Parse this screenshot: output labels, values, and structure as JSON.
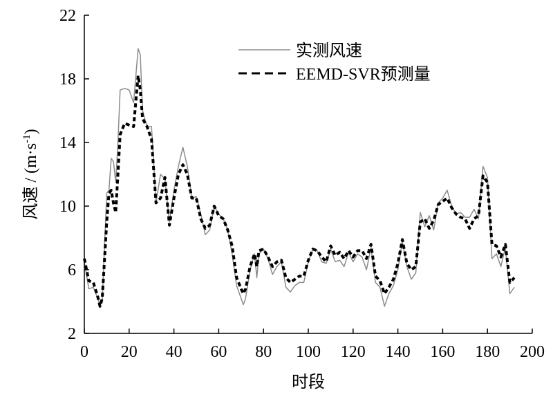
{
  "chart_data": {
    "type": "line",
    "title": "",
    "xlabel": "时段",
    "ylabel": "风速 / (m·s",
    "ylabel_sup": "-1",
    "ylabel_close": ")",
    "xlim": [
      0,
      200
    ],
    "ylim": [
      2,
      22
    ],
    "xticks": [
      0,
      20,
      40,
      60,
      80,
      100,
      120,
      140,
      160,
      180,
      200
    ],
    "yticks": [
      2,
      6,
      10,
      14,
      18,
      22
    ],
    "grid": false,
    "legend_position": "top-right",
    "x": [
      0,
      2,
      4,
      6,
      7,
      8,
      10,
      11,
      12,
      13,
      14,
      15,
      16,
      18,
      20,
      22,
      24,
      25,
      26,
      28,
      30,
      32,
      34,
      36,
      38,
      40,
      42,
      44,
      46,
      48,
      50,
      52,
      54,
      56,
      58,
      60,
      62,
      64,
      66,
      68,
      70,
      71,
      72,
      74,
      76,
      77,
      78,
      80,
      82,
      84,
      86,
      88,
      90,
      92,
      94,
      96,
      98,
      100,
      102,
      104,
      106,
      108,
      110,
      112,
      114,
      116,
      118,
      120,
      122,
      124,
      126,
      128,
      130,
      132,
      134,
      136,
      138,
      140,
      142,
      144,
      146,
      148,
      150,
      152,
      154,
      156,
      158,
      160,
      162,
      164,
      166,
      168,
      170,
      172,
      174,
      176,
      178,
      180,
      182,
      184,
      186,
      188,
      190,
      192
    ],
    "series": [
      {
        "name": "实测风速",
        "color": "#8c8c8c",
        "style": "solid",
        "values": [
          6.5,
          4.8,
          4.9,
          4.2,
          3.8,
          4.0,
          10.8,
          11.0,
          13.0,
          12.8,
          11.5,
          14.0,
          17.3,
          17.4,
          17.3,
          16.5,
          19.9,
          19.5,
          16.0,
          15.0,
          15.0,
          10.2,
          12.0,
          11.7,
          9.0,
          11.0,
          12.5,
          13.7,
          12.5,
          10.5,
          10.6,
          9.5,
          8.2,
          8.5,
          10.0,
          9.5,
          9.2,
          8.5,
          7.0,
          5.0,
          4.2,
          3.8,
          4.2,
          6.0,
          7.0,
          5.5,
          7.0,
          7.3,
          6.7,
          5.7,
          6.2,
          6.5,
          4.9,
          4.6,
          5.0,
          5.2,
          5.2,
          6.5,
          7.3,
          7.2,
          6.5,
          6.4,
          7.3,
          6.5,
          6.6,
          6.2,
          7.1,
          6.5,
          7.0,
          6.8,
          6.0,
          7.4,
          5.2,
          4.9,
          3.7,
          4.5,
          5.0,
          6.0,
          7.8,
          6.2,
          5.4,
          5.8,
          9.6,
          8.7,
          9.4,
          8.5,
          10.2,
          10.5,
          11.0,
          10.0,
          9.5,
          9.6,
          9.3,
          9.3,
          9.8,
          9.2,
          12.5,
          11.8,
          6.7,
          7.0,
          6.2,
          7.4,
          4.5,
          4.9
        ]
      },
      {
        "name": "EEMD-SVR预测量",
        "color": "#000000",
        "style": "dashed",
        "values": [
          6.7,
          5.3,
          5.2,
          4.3,
          3.7,
          4.2,
          9.0,
          10.8,
          11.0,
          10.2,
          9.6,
          12.0,
          14.5,
          15.2,
          15.1,
          15.0,
          18.2,
          17.3,
          15.5,
          15.0,
          14.2,
          10.2,
          10.5,
          11.8,
          8.8,
          10.5,
          12.0,
          12.6,
          12.0,
          10.5,
          10.5,
          9.2,
          8.6,
          8.8,
          10.0,
          9.4,
          9.2,
          8.5,
          7.5,
          5.5,
          4.8,
          4.5,
          4.8,
          6.2,
          7.0,
          6.2,
          7.2,
          7.3,
          6.8,
          6.2,
          6.5,
          6.6,
          5.5,
          5.2,
          5.4,
          5.6,
          5.6,
          6.6,
          7.3,
          7.2,
          6.8,
          6.5,
          7.5,
          6.9,
          7.1,
          6.7,
          7.2,
          6.8,
          7.2,
          7.2,
          6.7,
          7.6,
          5.6,
          5.3,
          4.5,
          4.9,
          5.4,
          6.4,
          7.9,
          6.4,
          6.0,
          6.2,
          9.0,
          9.2,
          8.6,
          9.1,
          10.1,
          10.3,
          10.5,
          9.9,
          9.5,
          9.3,
          9.2,
          8.6,
          9.2,
          9.4,
          11.9,
          11.5,
          7.6,
          7.5,
          6.8,
          7.6,
          5.2,
          5.5
        ]
      }
    ]
  }
}
